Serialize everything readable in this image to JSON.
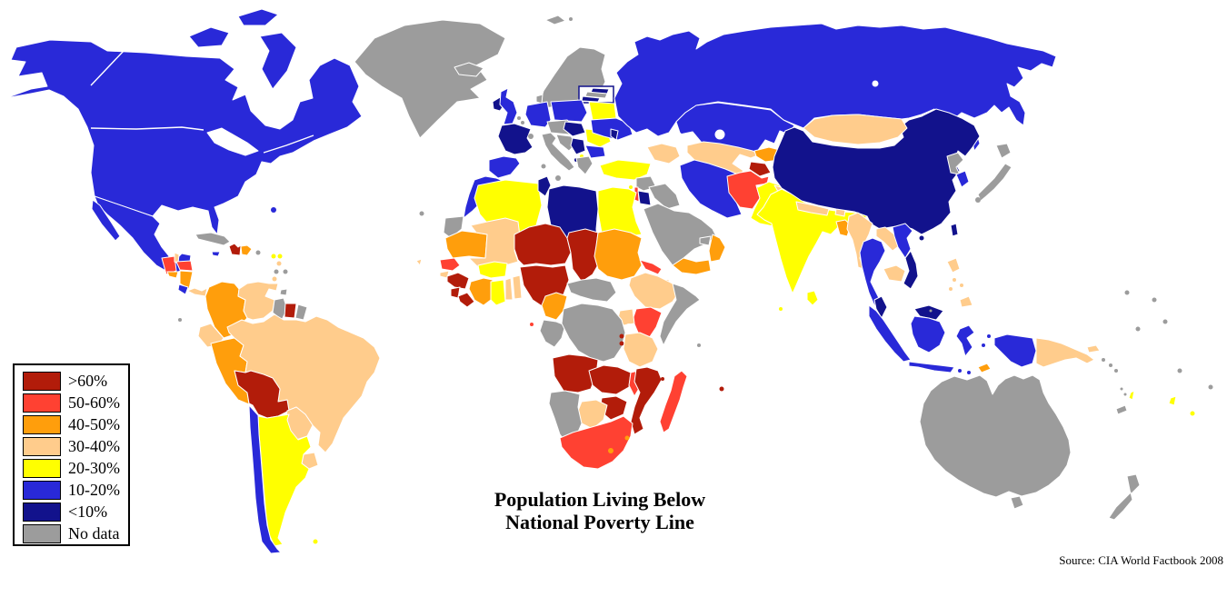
{
  "map": {
    "title": {
      "line1": "Population Living Below",
      "line2": "National Poverty Line"
    },
    "source": "Source: CIA World Factbook 2008",
    "palette": {
      "p60": "#B21C0A",
      "p50": "#FF4132",
      "p40": "#FF9E0C",
      "p30": "#FFCC8C",
      "p20": "#FFFF00",
      "p10": "#2929D8",
      "p0": "#12128C",
      "nd": "#9C9C9C"
    },
    "legend": [
      {
        "label": ">60%",
        "category": "p60"
      },
      {
        "label": "50-60%",
        "category": "p50"
      },
      {
        "label": "40-50%",
        "category": "p40"
      },
      {
        "label": "30-40%",
        "category": "p30"
      },
      {
        "label": "20-30%",
        "category": "p20"
      },
      {
        "label": "10-20%",
        "category": "p10"
      },
      {
        "label": "<10%",
        "category": "p0"
      },
      {
        "label": "No data",
        "category": "nd"
      }
    ],
    "regions": {
      "greenland": "nd",
      "iceland": "nd",
      "canada-usa": "p10",
      "canadian-arctic": "p10",
      "mexico": "p10",
      "hawaii": "p10",
      "guatemala": "p50",
      "belize": "p30",
      "honduras": "p50",
      "el-salvador": "p40",
      "nicaragua": "p40",
      "costa-rica": "p10",
      "panama": "p30",
      "cuba": "nd",
      "bahamas": "p0",
      "jamaica": "p10",
      "haiti": "p60",
      "dominican-republic": "p40",
      "puerto-rico": "nd",
      "trinidad": "nd",
      "antilles-a": "p20",
      "antilles-b": "p20",
      "antilles-c": "p30",
      "antilles-d": "nd",
      "antilles-e": "nd",
      "antilles-f": "p30",
      "antilles-g": "p10",
      "canary-islands": "nd",
      "cape-verde": "p30",
      "galapagos": "nd",
      "colombia": "p40",
      "venezuela": "p30",
      "guyana": "nd",
      "suriname": "p60",
      "french-guiana": "nd",
      "ecuador": "p30",
      "peru": "p40",
      "brazil": "p30",
      "bolivia": "p60",
      "paraguay": "p30",
      "uruguay": "p30",
      "argentina": "p20",
      "chile": "p10",
      "falkland-islands": "p20",
      "ireland": "p0",
      "united-kingdom": "p10",
      "scandinavia": "nd",
      "denmark": "nd",
      "svalbard": "nd",
      "estonia": "p0",
      "latvia": "nd",
      "lithuania": "p0",
      "kaliningrad": "nd",
      "benelux": "nd",
      "germany": "p10",
      "poland": "p10",
      "france": "p0",
      "spain-portugal": "p10",
      "switzerland": "nd",
      "czech-austria": "nd",
      "italy": "nd",
      "croatia-bosnia": "nd",
      "hungary-slovakia": "p0",
      "serbia": "p0",
      "albania": "p0",
      "macedonia": "p20",
      "greece": "nd",
      "romania": "p20",
      "bulgaria": "p10",
      "belarus": "p20",
      "ukraine": "p10",
      "moldova": "p0",
      "russia": "p10",
      "kazakhstan": "p10",
      "sakhalin": "p10",
      "turkey": "p20",
      "cyprus": "p20",
      "syria": "nd",
      "iraq": "nd",
      "israel": "p50",
      "jordan": "p0",
      "saudi-arabia": "nd",
      "yemen": "p40",
      "oman": "p40",
      "uae": "nd",
      "iran": "p10",
      "caucasus": "p30",
      "morocco": "p10",
      "western-sahara": "nd",
      "algeria": "p20",
      "tunisia": "p0",
      "libya": "p0",
      "egypt": "p20",
      "mauritania": "p40",
      "mali": "p30",
      "niger": "p60",
      "chad": "p60",
      "sudan": "p40",
      "eritrea": "p50",
      "djibouti": "p30",
      "ethiopia": "p30",
      "somalia": "nd",
      "kenya": "p50",
      "uganda": "p30",
      "senegal": "p50",
      "guinea-bissau": "p30",
      "guinea": "p60",
      "sierra-leone": "p60",
      "liberia": "p60",
      "ivory-coast": "p40",
      "ghana": "p20",
      "togo": "p30",
      "benin": "p30",
      "burkina-faso": "p20",
      "nigeria": "p60",
      "cameroon": "p40",
      "central-african-republic": "nd",
      "equatorial-guinea": "p50",
      "gabon-congo": "nd",
      "drc": "nd",
      "rwanda": "p60",
      "burundi": "p60",
      "tanzania": "p30",
      "angola": "p60",
      "zambia": "p60",
      "malawi": "p50",
      "mozambique": "p60",
      "zimbabwe": "p60",
      "botswana": "p30",
      "namibia": "nd",
      "south-africa": "p50",
      "lesotho": "p40",
      "swaziland": "p40",
      "madagascar": "p50",
      "comoros": "p60",
      "mauritius": "p60",
      "seychelles": "nd",
      "turkmenistan-uzbekistan": "p30",
      "kyrgyzstan": "p40",
      "tajikistan": "p60",
      "afghanistan": "p50",
      "pakistan": "p20",
      "kashmir": "p30",
      "india": "p20",
      "nepal": "p30",
      "bhutan": "p30",
      "bangladesh": "p40",
      "sri-lanka": "p20",
      "maldives": "p20",
      "myanmar": "p30",
      "thailand": "p10",
      "laos": "p30",
      "cambodia": "p30",
      "vietnam-north": "p10",
      "vietnam-south": "p0",
      "china": "p0",
      "mongolia": "p30",
      "taiwan": "p0",
      "hainan": "p0",
      "north-korea": "nd",
      "south-korea": "p10",
      "japan": "nd",
      "philippines": "p30",
      "malaysia-peninsula": "p0",
      "malaysia-borneo": "p0",
      "singapore": "nd",
      "brunei": "nd",
      "sumatra": "p10",
      "kalimantan": "p10",
      "java": "p10",
      "sulawesi": "p10",
      "lesser-sunda": "p10",
      "moluccas": "p10",
      "east-timor": "p40",
      "west-papua": "p10",
      "papua-new-guinea": "p30",
      "new-britain": "p30",
      "solomon-islands": "nd",
      "australia": "nd",
      "tasmania": "nd",
      "new-zealand": "nd",
      "new-caledonia": "nd",
      "vanuatu": "nd",
      "fiji": "p20",
      "tonga": "p20",
      "pacific-islands": "nd"
    }
  }
}
